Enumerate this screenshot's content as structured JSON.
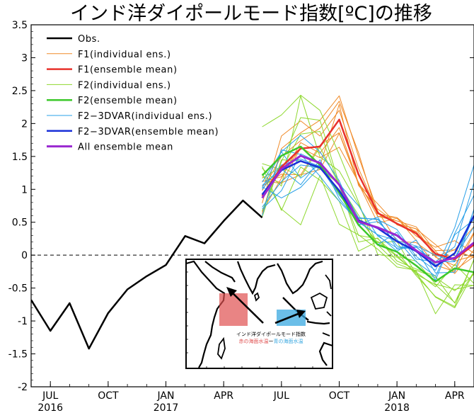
{
  "chart_data": {
    "type": "line",
    "title": "インド洋ダイポールモード指数[ºC]の推移",
    "xlabel": "",
    "ylabel": "",
    "ylim": [
      -2,
      3.5
    ],
    "y_ticks": [
      "3.5",
      "3",
      "2.5",
      "2",
      "1.5",
      "1",
      "0.5",
      "0",
      "-0.5",
      "-1",
      "-1.5",
      "-2"
    ],
    "x_ticks": [
      {
        "month": "JUL",
        "year": "2016",
        "date": "2016-07"
      },
      {
        "month": "OCT",
        "year": "",
        "date": "2016-10"
      },
      {
        "month": "JAN",
        "year": "2017",
        "date": "2017-01"
      },
      {
        "month": "APR",
        "year": "",
        "date": "2017-04"
      },
      {
        "month": "JUL",
        "year": "",
        "date": "2017-07"
      },
      {
        "month": "OCT",
        "year": "",
        "date": "2017-10"
      },
      {
        "month": "JAN",
        "year": "2018",
        "date": "2018-01"
      },
      {
        "month": "APR",
        "year": "",
        "date": "2018-04"
      }
    ],
    "x_range": [
      "2016-06",
      "2018-05"
    ],
    "zero_line": "dashed",
    "legend_position": "top-left",
    "series": [
      {
        "name": "Obs.",
        "color": "#000000",
        "width": 2.5,
        "kind": "obs",
        "x": [
          "2016-06",
          "2016-07",
          "2016-08",
          "2016-09",
          "2016-10",
          "2016-11",
          "2016-12",
          "2017-01",
          "2017-02",
          "2017-03",
          "2017-04",
          "2017-05",
          "2017-06"
        ],
        "y": [
          -0.68,
          -1.15,
          -0.73,
          -1.42,
          -0.88,
          -0.52,
          -0.32,
          -0.15,
          0.29,
          0.18,
          0.52,
          0.83,
          0.57
        ]
      },
      {
        "name": "F1(individual ens.)",
        "color": "#f08a28",
        "width": 1,
        "kind": "ens",
        "members": [
          [
            0.63,
            1.62,
            1.86,
            2.05,
            2.42,
            1.5,
            0.67,
            0.21,
            0.19,
            -0.02,
            -0.28,
            0.08
          ],
          [
            0.79,
            1.81,
            2.04,
            1.81,
            2.2,
            1.32,
            0.65,
            0.48,
            0.4,
            -0.03,
            -0.16,
            0.35
          ],
          [
            0.98,
            1.5,
            1.74,
            1.93,
            2.34,
            1.56,
            0.59,
            0.52,
            0.43,
            0.06,
            -0.23,
            -0.02
          ],
          [
            1.12,
            1.19,
            1.64,
            1.36,
            2.29,
            1.06,
            0.7,
            0.48,
            0.4,
            0.16,
            -0.09,
            -0.01
          ],
          [
            1.05,
            1.23,
            1.22,
            1.67,
            1.86,
            1.1,
            0.63,
            0.57,
            0.34,
            0.07,
            0.08,
            0.44
          ],
          [
            0.66,
            1.17,
            1.71,
            1.55,
            1.94,
            1.09,
            0.49,
            0.56,
            0.29,
            0.12,
            0.22,
            0.03
          ],
          [
            1.13,
            1.09,
            1.63,
            1.48,
            1.64,
            1.11,
            0.59,
            0.57,
            0.22,
            -0.15,
            -0.25,
            0.33
          ],
          [
            1.19,
            1.1,
            1.22,
            1.3,
            1.85,
            1.08,
            0.78,
            0.46,
            0.36,
            -0.02,
            0.08,
            -0.04
          ]
        ]
      },
      {
        "name": "F1(ensemble mean)",
        "color": "#e8322c",
        "width": 2.5,
        "kind": "mean",
        "y": [
          0.9,
          1.34,
          1.62,
          1.65,
          2.06,
          1.23,
          0.64,
          0.48,
          0.33,
          0.02,
          -0.06,
          0.16
        ]
      },
      {
        "name": "F2(individual ens.)",
        "color": "#8ed82e",
        "width": 1,
        "kind": "ens",
        "members": [
          [
            1.95,
            2.13,
            2.43,
            2.2,
            1.53,
            0.81,
            0.01,
            -0.03,
            -0.26,
            -0.48,
            -0.14,
            -0.43
          ],
          [
            0.67,
            1.42,
            2.09,
            2.05,
            1.08,
            0.56,
            0.19,
            0.21,
            -0.29,
            -0.45,
            -0.72,
            -0.25
          ],
          [
            1.39,
            1.3,
            1.84,
            1.88,
            1.05,
            0.3,
            0.25,
            -0.01,
            -0.28,
            -0.64,
            -0.8,
            -0.26
          ],
          [
            1.32,
            1.05,
            2.42,
            1.49,
            1.28,
            0.77,
            0.16,
            -0.13,
            -0.24,
            -0.89,
            -0.45,
            -0.46
          ],
          [
            1.17,
            1.34,
            1.19,
            1.64,
            1.07,
            0.61,
            0.15,
            0.05,
            -0.31,
            -0.63,
            -0.78,
            -0.06
          ],
          [
            1.35,
            0.68,
            1.34,
            1.14,
            0.82,
            0.06,
            0.21,
            -0.02,
            -0.09,
            -0.44,
            -0.52,
            -0.46
          ],
          [
            0.58,
            1.45,
            1.43,
            1.31,
            1.08,
            0.2,
            0.26,
            -0.09,
            -0.21,
            -0.32,
            -0.73,
            -0.07
          ],
          [
            1.24,
            0.7,
            0.46,
            1.21,
            0.47,
            0.31,
            0.09,
            -0.18,
            -0.23,
            -0.34,
            -0.54,
            -0.29
          ]
        ]
      },
      {
        "name": "F2(ensemble mean)",
        "color": "#3cc82a",
        "width": 2.5,
        "kind": "mean",
        "y": [
          1.21,
          1.51,
          1.65,
          1.37,
          0.95,
          0.46,
          0.16,
          0.05,
          -0.16,
          -0.4,
          -0.2,
          -0.26
        ]
      },
      {
        "name": "F2−3DVAR(individual ens.)",
        "color": "#2aa0e8",
        "width": 1,
        "kind": "ens",
        "members": [
          [
            0.73,
            1.12,
            1.37,
            1.33,
            1.09,
            0.57,
            0.54,
            0.39,
            -0.02,
            -0.23,
            0.42,
            1.37
          ],
          [
            1.11,
            1.57,
            1.17,
            1.38,
            1.07,
            0.46,
            0.51,
            0.24,
            -0.1,
            -0.32,
            0.31,
            0.54
          ],
          [
            1.06,
            1.31,
            1.07,
            1.45,
            0.86,
            0.5,
            0.31,
            0.22,
            0.14,
            0.0,
            -0.09,
            0.6
          ],
          [
            1.02,
            1.57,
            1.82,
            1.57,
            1.13,
            0.47,
            0.16,
            0.35,
            -0.06,
            -0.1,
            0.13,
            1.1
          ],
          [
            0.7,
            0.98,
            1.54,
            1.4,
            1.08,
            0.75,
            0.29,
            0.11,
            0.13,
            -0.15,
            -0.03,
            0.43
          ],
          [
            1.04,
            0.87,
            1.03,
            1.34,
            0.91,
            0.56,
            0.55,
            0.14,
            0.08,
            -0.38,
            0.33,
            0.91
          ],
          [
            0.6,
            1.6,
            1.53,
            1.2,
            0.82,
            0.51,
            0.31,
            0.06,
            0.23,
            -0.27,
            -0.26,
            0.7
          ],
          [
            1.0,
            1.37,
            1.46,
            1.35,
            0.97,
            0.46,
            0.58,
            0.09,
            0.12,
            -0.1,
            -0.1,
            0.69
          ]
        ]
      },
      {
        "name": "F2−3DVAR(ensemble mean)",
        "color": "#1a30d8",
        "width": 2.5,
        "kind": "mean",
        "y": [
          0.92,
          1.29,
          1.43,
          1.33,
          0.98,
          0.53,
          0.41,
          0.21,
          0.06,
          -0.17,
          0.03,
          0.6
        ]
      },
      {
        "name": "All ensemble mean",
        "color": "#9a28d0",
        "width": 3,
        "kind": "mean",
        "y": [
          0.87,
          1.31,
          1.51,
          1.4,
          1.07,
          0.51,
          0.42,
          0.3,
          0.07,
          -0.11,
          -0.04,
          0.19
        ]
      }
    ],
    "forecast_start": "2017-06"
  },
  "inset": {
    "label_title": "インド洋ダイポールモード指数",
    "label_red": "赤の海面水温",
    "label_sep": "ー",
    "label_blue": "青の海面水温",
    "red_color": "#e05050",
    "blue_color": "#3aa8e0"
  }
}
